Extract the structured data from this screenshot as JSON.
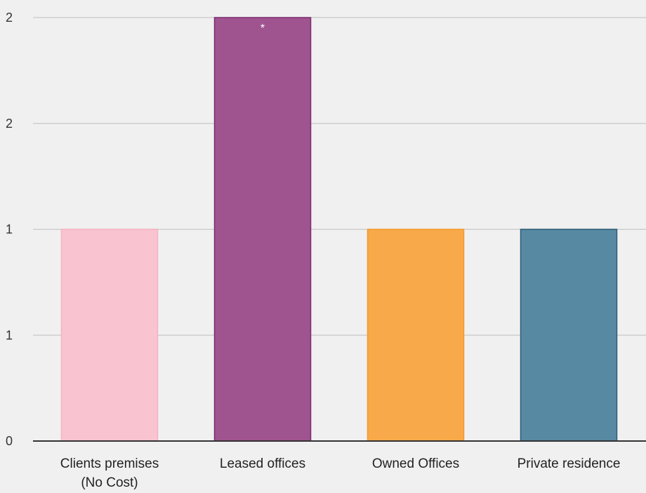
{
  "chart_data": {
    "type": "bar",
    "title": "",
    "xlabel": "",
    "ylabel": "",
    "categories": [
      [
        "Clients premises",
        "(No Cost)"
      ],
      [
        "Leased offices"
      ],
      [
        "Owned Offices"
      ],
      [
        "Private residence"
      ]
    ],
    "values": [
      1,
      2,
      1,
      1
    ],
    "ylim": [
      0,
      2
    ],
    "yticks": [
      0,
      0.5,
      1,
      1.5,
      2
    ],
    "ytick_labels": [
      "0",
      "1",
      "1",
      "2",
      "2"
    ],
    "grid": true,
    "legend": "none",
    "colors": [
      "#f9c4cf",
      "#a0548f",
      "#f8a94a",
      "#5789a3"
    ],
    "edge_colors": [
      "#f3b2c1",
      "#7d2a72",
      "#f39a2a",
      "#2e5c74"
    ],
    "annotations": [
      {
        "category_index": 1,
        "text": "*"
      }
    ]
  },
  "colors": {
    "background": "#f0f0f0",
    "grid": "#c8c8c8",
    "axis": "#333333"
  }
}
